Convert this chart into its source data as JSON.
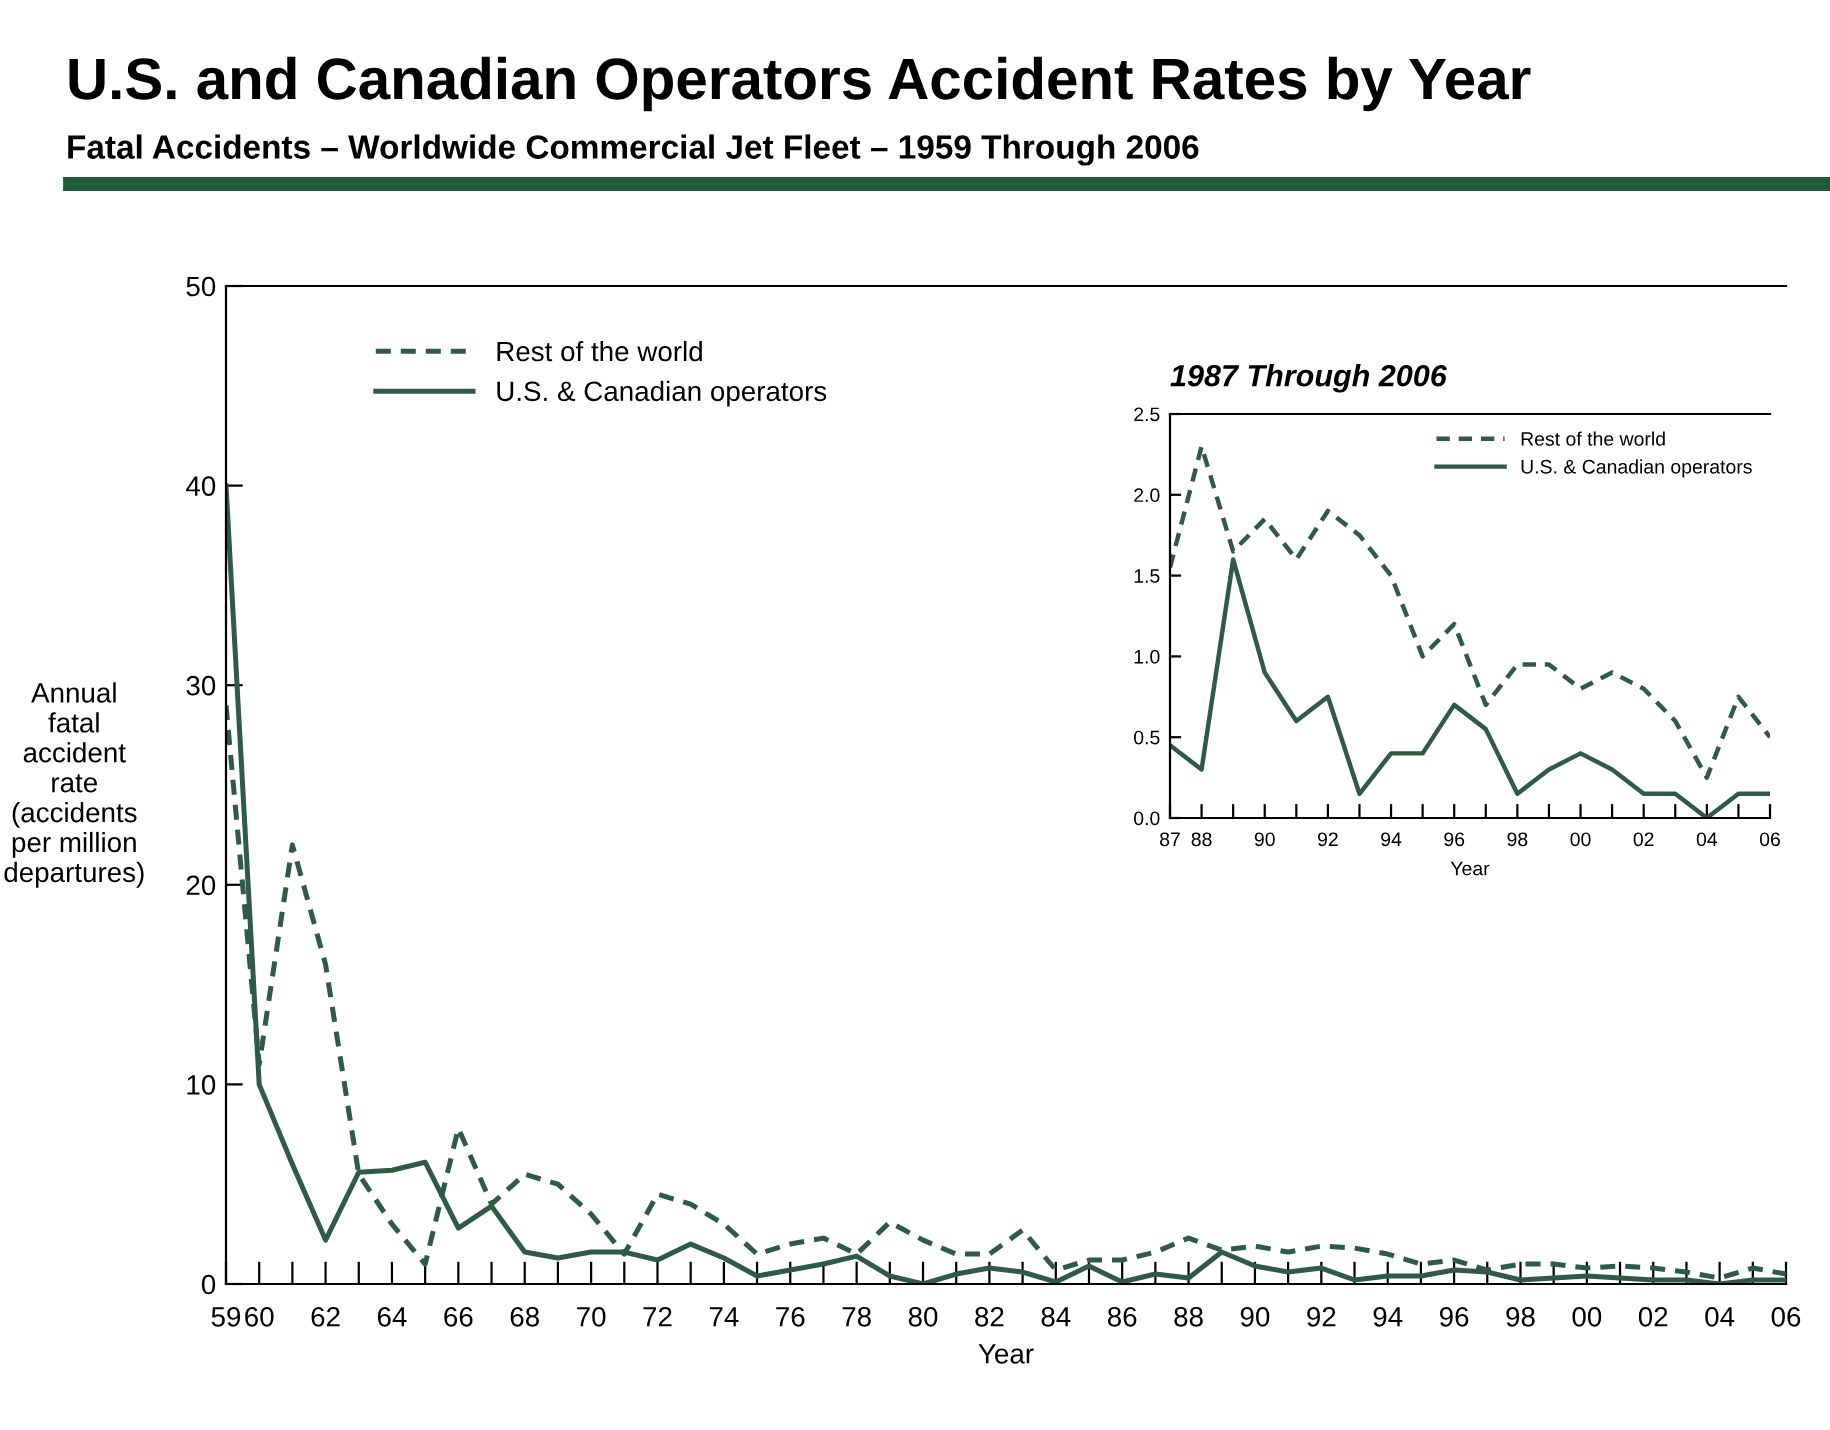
{
  "chart_data": [
    {
      "type": "line",
      "title": "U.S. and Canadian Operators Accident Rates by Year",
      "subtitle": "Fatal Accidents – Worldwide Commercial Jet Fleet – 1959 Through 2006",
      "xlabel": "Year",
      "ylabel": "Annual\nfatal\naccident\nrate\n(accidents\nper million\ndepartures)",
      "x": [
        1959,
        1960,
        1961,
        1962,
        1963,
        1964,
        1965,
        1966,
        1967,
        1968,
        1969,
        1970,
        1971,
        1972,
        1973,
        1974,
        1975,
        1976,
        1977,
        1978,
        1979,
        1980,
        1981,
        1982,
        1983,
        1984,
        1985,
        1986,
        1987,
        1988,
        1989,
        1990,
        1991,
        1992,
        1993,
        1994,
        1995,
        1996,
        1997,
        1998,
        1999,
        2000,
        2001,
        2002,
        2003,
        2004,
        2005,
        2006
      ],
      "series": [
        {
          "name": "Rest of the world",
          "color": "#2f5a45",
          "line_style": "dashed",
          "values": [
            29,
            11,
            22,
            16,
            5.5,
            3,
            1,
            7.8,
            4,
            5.5,
            5,
            3.5,
            1.5,
            4.5,
            4,
            3,
            1.5,
            2,
            2.3,
            1.5,
            3.1,
            2.2,
            1.5,
            1.5,
            2.7,
            0.7,
            1.2,
            1.2,
            1.6,
            2.3,
            1.7,
            1.9,
            1.6,
            1.9,
            1.8,
            1.5,
            1.0,
            1.2,
            0.7,
            1.0,
            1.0,
            0.8,
            0.9,
            0.8,
            0.6,
            0.3,
            0.8,
            0.5
          ]
        },
        {
          "name": "U.S. & Canadian operators",
          "color": "#2f5a45",
          "line_style": "solid",
          "values": [
            40,
            10,
            6,
            2.2,
            5.6,
            5.7,
            6.1,
            2.8,
            3.9,
            1.6,
            1.3,
            1.6,
            1.6,
            1.2,
            2.0,
            1.3,
            0.4,
            0.7,
            1.0,
            1.4,
            0.4,
            0,
            0.5,
            0.8,
            0.6,
            0.1,
            0.9,
            0.1,
            0.5,
            0.3,
            1.6,
            0.9,
            0.6,
            0.8,
            0.2,
            0.4,
            0.4,
            0.7,
            0.6,
            0.2,
            0.3,
            0.4,
            0.3,
            0.2,
            0.2,
            0,
            0.2,
            0.2
          ]
        }
      ],
      "xlim": [
        1959,
        2006
      ],
      "xticks": [
        {
          "value": 1959,
          "label": "59"
        },
        {
          "value": 1960,
          "label": "60"
        },
        {
          "value": 1961,
          "label": null
        },
        {
          "value": 1962,
          "label": "62"
        },
        {
          "value": 1963,
          "label": null
        },
        {
          "value": 1964,
          "label": "64"
        },
        {
          "value": 1965,
          "label": null
        },
        {
          "value": 1966,
          "label": "66"
        },
        {
          "value": 1967,
          "label": null
        },
        {
          "value": 1968,
          "label": "68"
        },
        {
          "value": 1969,
          "label": null
        },
        {
          "value": 1970,
          "label": "70"
        },
        {
          "value": 1971,
          "label": null
        },
        {
          "value": 1972,
          "label": "72"
        },
        {
          "value": 1973,
          "label": null
        },
        {
          "value": 1974,
          "label": "74"
        },
        {
          "value": 1975,
          "label": null
        },
        {
          "value": 1976,
          "label": "76"
        },
        {
          "value": 1977,
          "label": null
        },
        {
          "value": 1978,
          "label": "78"
        },
        {
          "value": 1979,
          "label": null
        },
        {
          "value": 1980,
          "label": "80"
        },
        {
          "value": 1981,
          "label": null
        },
        {
          "value": 1982,
          "label": "82"
        },
        {
          "value": 1983,
          "label": null
        },
        {
          "value": 1984,
          "label": "84"
        },
        {
          "value": 1985,
          "label": null
        },
        {
          "value": 1986,
          "label": "86"
        },
        {
          "value": 1987,
          "label": null
        },
        {
          "value": 1988,
          "label": "88"
        },
        {
          "value": 1989,
          "label": null
        },
        {
          "value": 1990,
          "label": "90"
        },
        {
          "value": 1991,
          "label": null
        },
        {
          "value": 1992,
          "label": "92"
        },
        {
          "value": 1993,
          "label": null
        },
        {
          "value": 1994,
          "label": "94"
        },
        {
          "value": 1995,
          "label": null
        },
        {
          "value": 1996,
          "label": "96"
        },
        {
          "value": 1997,
          "label": null
        },
        {
          "value": 1998,
          "label": "98"
        },
        {
          "value": 1999,
          "label": null
        },
        {
          "value": 2000,
          "label": "00"
        },
        {
          "value": 2001,
          "label": null
        },
        {
          "value": 2002,
          "label": "02"
        },
        {
          "value": 2003,
          "label": null
        },
        {
          "value": 2004,
          "label": "04"
        },
        {
          "value": 2005,
          "label": null
        },
        {
          "value": 2006,
          "label": "06"
        }
      ],
      "ylim": [
        0,
        50
      ],
      "yticks": [
        0,
        10,
        20,
        30,
        40,
        50
      ],
      "grid": false,
      "legend": "top left",
      "marker": "none"
    },
    {
      "type": "line",
      "title": "1987 Through 2006",
      "xlabel": "Year",
      "x": [
        1987,
        1988,
        1989,
        1990,
        1991,
        1992,
        1993,
        1994,
        1995,
        1996,
        1997,
        1998,
        1999,
        2000,
        2001,
        2002,
        2003,
        2004,
        2005,
        2006
      ],
      "series": [
        {
          "name": "Rest of the world",
          "color": "#2f5a45",
          "line_style": "dashed",
          "values": [
            1.55,
            2.3,
            1.65,
            1.85,
            1.6,
            1.9,
            1.75,
            1.5,
            1.0,
            1.2,
            0.7,
            0.95,
            0.95,
            0.8,
            0.9,
            0.8,
            0.6,
            0.25,
            0.75,
            0.5
          ]
        },
        {
          "name": "U.S. & Canadian operators",
          "color": "#2f5a45",
          "line_style": "solid",
          "values": [
            0.45,
            0.3,
            1.6,
            0.9,
            0.6,
            0.75,
            0.15,
            0.4,
            0.4,
            0.7,
            0.55,
            0.15,
            0.3,
            0.4,
            0.3,
            0.15,
            0.15,
            0,
            0.15,
            0.15
          ]
        }
      ],
      "xlim": [
        1987,
        2006
      ],
      "xticks": [
        {
          "value": 1987,
          "label": "87"
        },
        {
          "value": 1988,
          "label": "88"
        },
        {
          "value": 1989,
          "label": null
        },
        {
          "value": 1990,
          "label": "90"
        },
        {
          "value": 1991,
          "label": null
        },
        {
          "value": 1992,
          "label": "92"
        },
        {
          "value": 1993,
          "label": null
        },
        {
          "value": 1994,
          "label": "94"
        },
        {
          "value": 1995,
          "label": null
        },
        {
          "value": 1996,
          "label": "96"
        },
        {
          "value": 1997,
          "label": null
        },
        {
          "value": 1998,
          "label": "98"
        },
        {
          "value": 1999,
          "label": null
        },
        {
          "value": 2000,
          "label": "00"
        },
        {
          "value": 2001,
          "label": null
        },
        {
          "value": 2002,
          "label": "02"
        },
        {
          "value": 2003,
          "label": null
        },
        {
          "value": 2004,
          "label": "04"
        },
        {
          "value": 2005,
          "label": null
        },
        {
          "value": 2006,
          "label": "06"
        }
      ],
      "ylim": [
        0,
        2.5
      ],
      "yticks": [
        {
          "value": 0,
          "label": "0.0"
        },
        {
          "value": 0.5,
          "label": "0.5"
        },
        {
          "value": 1,
          "label": "1.0"
        },
        {
          "value": 1.5,
          "label": "1.5"
        },
        {
          "value": 2,
          "label": "2.0"
        },
        {
          "value": 2.5,
          "label": "2.5"
        }
      ],
      "grid": false,
      "legend": "top right",
      "marker": "none"
    }
  ]
}
